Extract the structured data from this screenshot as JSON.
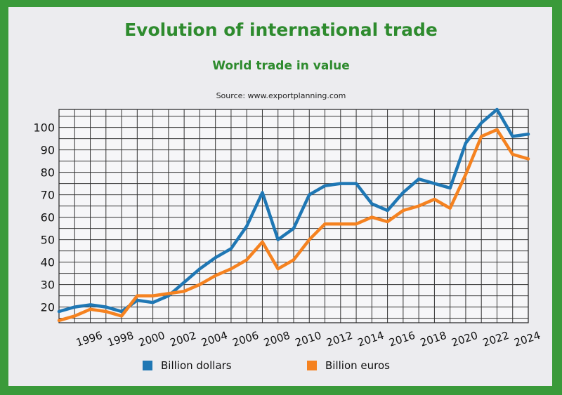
{
  "chart_data": {
    "type": "line",
    "title": "Evolution of international trade",
    "subtitle": "World trade in value",
    "source": "Source: www.exportplanning.com",
    "xlabel": "",
    "ylabel": "",
    "x": [
      1994,
      1995,
      1996,
      1997,
      1998,
      1999,
      2000,
      2001,
      2002,
      2003,
      2004,
      2005,
      2006,
      2007,
      2008,
      2009,
      2010,
      2011,
      2012,
      2013,
      2014,
      2015,
      2016,
      2017,
      2018,
      2019,
      2020,
      2021,
      2022,
      2023,
      2024
    ],
    "x_tick_labels": [
      "1996",
      "1998",
      "2000",
      "2002",
      "2004",
      "2006",
      "2008",
      "2010",
      "2012",
      "2014",
      "2016",
      "2018",
      "2020",
      "2022",
      "2024"
    ],
    "y_ticks": [
      20,
      30,
      40,
      50,
      60,
      70,
      80,
      90,
      100
    ],
    "ylim": [
      13,
      108
    ],
    "grid": true,
    "legend_position": "bottom",
    "series": [
      {
        "name": "Billion dollars",
        "color": "#1f77b4",
        "values": [
          18,
          20,
          21,
          20,
          18,
          23,
          22,
          25,
          31,
          37,
          42,
          46,
          56,
          71,
          50,
          55,
          70,
          74,
          75,
          75,
          66,
          63,
          71,
          77,
          75,
          73,
          93,
          102,
          108,
          96,
          97
        ]
      },
      {
        "name": "Billion euros",
        "color": "#f58220",
        "values": [
          14,
          16,
          19,
          18,
          16,
          25,
          25,
          26,
          27,
          30,
          34,
          37,
          41,
          49,
          37,
          41,
          50,
          57,
          57,
          57,
          60,
          58,
          63,
          65,
          68,
          64,
          79,
          96,
          99,
          88,
          86
        ]
      }
    ]
  }
}
